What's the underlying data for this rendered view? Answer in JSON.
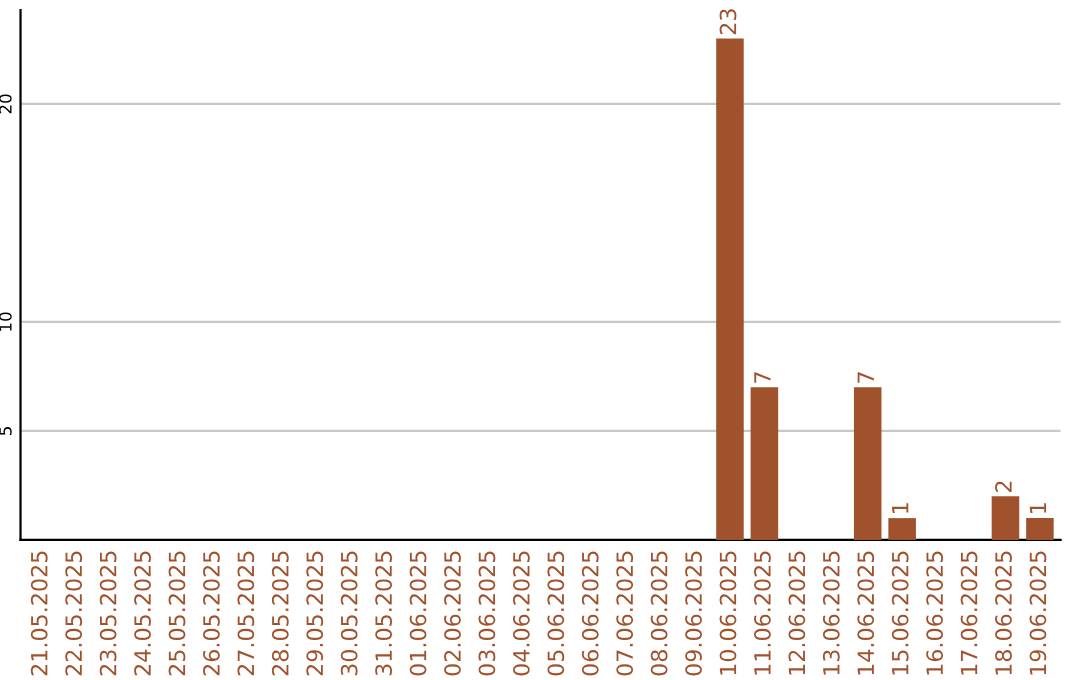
{
  "chart_data": {
    "type": "bar",
    "categories": [
      "21.05.2025",
      "22.05.2025",
      "23.05.2025",
      "24.05.2025",
      "25.05.2025",
      "26.05.2025",
      "27.05.2025",
      "28.05.2025",
      "29.05.2025",
      "30.05.2025",
      "31.05.2025",
      "01.06.2025",
      "02.06.2025",
      "03.06.2025",
      "04.06.2025",
      "05.06.2025",
      "06.06.2025",
      "07.06.2025",
      "08.06.2025",
      "09.06.2025",
      "10.06.2025",
      "11.06.2025",
      "12.06.2025",
      "13.06.2025",
      "14.06.2025",
      "15.06.2025",
      "16.06.2025",
      "17.06.2025",
      "18.06.2025",
      "19.06.2025"
    ],
    "values": [
      0,
      0,
      0,
      0,
      0,
      0,
      0,
      0,
      0,
      0,
      0,
      0,
      0,
      0,
      0,
      0,
      0,
      0,
      0,
      0,
      23,
      7,
      0,
      0,
      7,
      1,
      0,
      0,
      2,
      1
    ],
    "value_labels": [
      null,
      null,
      null,
      null,
      null,
      null,
      null,
      null,
      null,
      null,
      null,
      null,
      null,
      null,
      null,
      null,
      null,
      null,
      null,
      null,
      "23",
      "7",
      null,
      null,
      "7",
      "1",
      null,
      null,
      "2",
      "1"
    ],
    "color": "#a0522d",
    "ylim": [
      0,
      24.3
    ],
    "yticks": [
      5,
      10,
      20
    ],
    "grid": "y"
  }
}
